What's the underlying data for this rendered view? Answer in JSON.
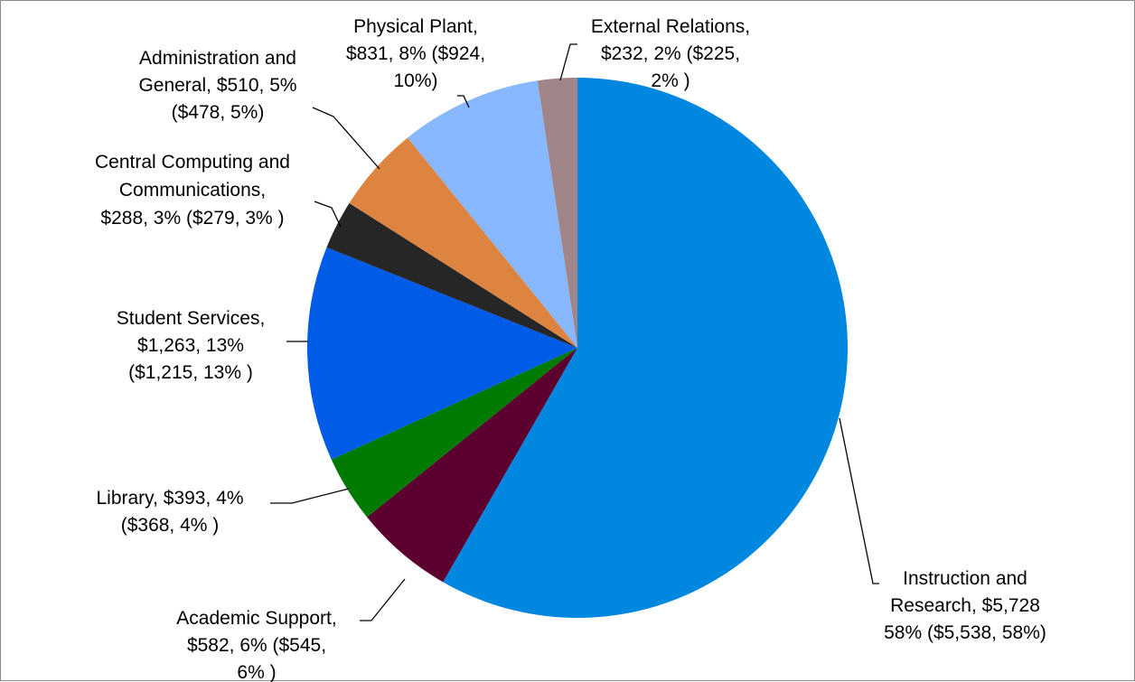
{
  "chart_data": {
    "type": "pie",
    "title": "",
    "start": "12 o'clock",
    "direction": "clockwise",
    "legend": "none (data labels with leader lines)",
    "series": [
      {
        "values": [
          5728,
          582,
          393,
          1263,
          288,
          510,
          831,
          232
        ],
        "categories": [
          "Instruction and Research",
          "Academic Support",
          "Library",
          "Student Services",
          "Central Computing and Communications",
          "Administration and General",
          "Physical Plant",
          "External Relations"
        ],
        "percents": [
          58,
          6,
          4,
          13,
          3,
          5,
          8,
          2
        ],
        "colors": [
          "#0087e0",
          "#5c0030",
          "#007a00",
          "#005ce6",
          "#262626",
          "#dd8440",
          "#88b8ff",
          "#a08589"
        ]
      }
    ],
    "data_labels": [
      [
        "Instruction and",
        "Research, $5,728",
        "58% ($5,538, 58%)"
      ],
      [
        "Academic Support,",
        "$582, 6% ($545,",
        "6% )"
      ],
      [
        "Library, $393, 4%",
        "($368, 4% )"
      ],
      [
        "Student Services,",
        "$1,263, 13%",
        "($1,215, 13% )"
      ],
      [
        "Central Computing and",
        "Communications,",
        "$288, 3% ($279, 3% )"
      ],
      [
        "Administration and",
        "General, $510, 5%",
        "($478, 5%)"
      ],
      [
        "Physical Plant,",
        "$831, 8% ($924,",
        "10%)"
      ],
      [
        "External Relations,",
        "$232, 2% ($225,",
        "2% )"
      ]
    ]
  }
}
